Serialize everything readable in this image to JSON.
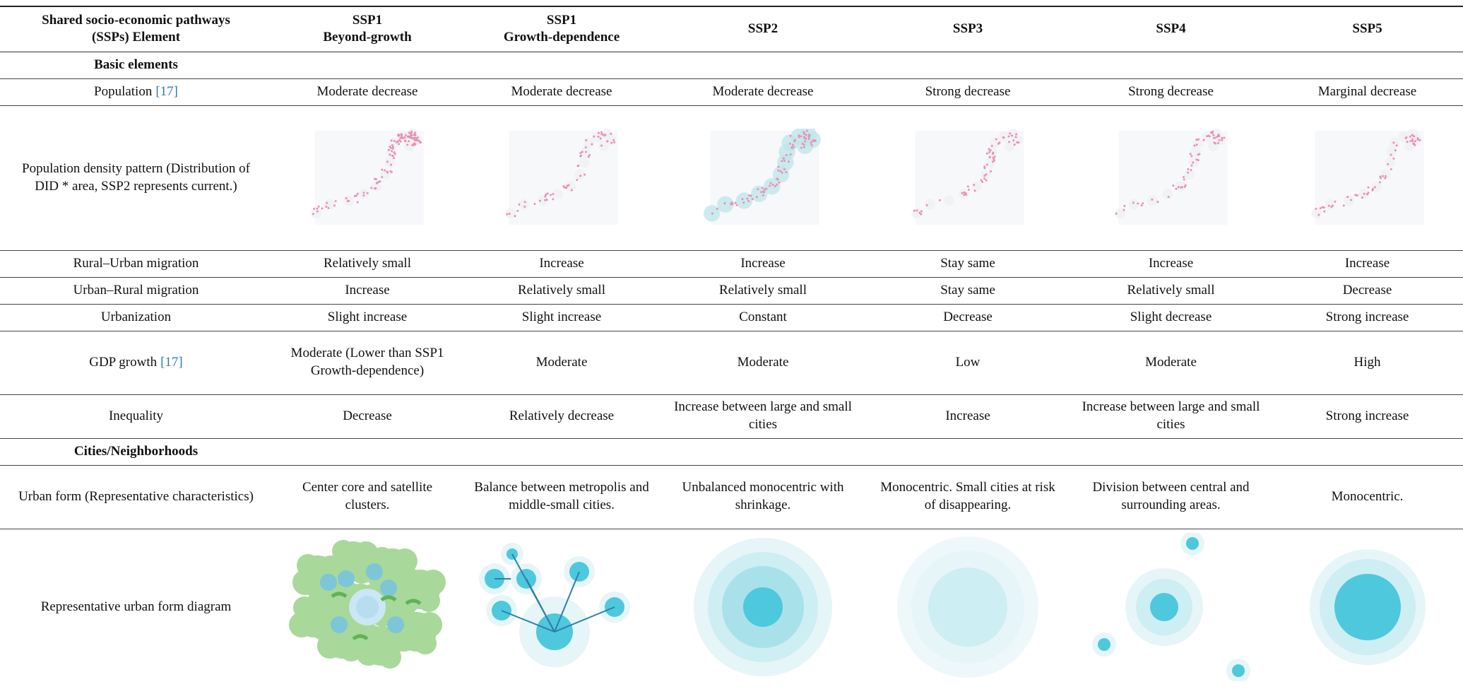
{
  "table": {
    "header": [
      [
        "Shared socio-economic pathways",
        "(SSPs) Element"
      ],
      [
        "SSP1",
        "Beyond-growth"
      ],
      [
        "SSP1",
        "Growth-dependence"
      ],
      [
        "SSP2"
      ],
      [
        "SSP3"
      ],
      [
        "SSP4"
      ],
      [
        "SSP5"
      ]
    ],
    "rows": [
      {
        "section": "Basic elements"
      },
      {
        "label": "Population",
        "ref": "[17]",
        "cells": [
          "Moderate decrease",
          "Moderate decrease",
          "Moderate decrease",
          "Strong decrease",
          "Strong decrease",
          "Marginal decrease"
        ]
      },
      {
        "label": "Population density pattern (Distribution of DID * area, SSP2 represents current.)"
      },
      {
        "label": "Rural–Urban migration",
        "cells": [
          "Relatively small",
          "Increase",
          "Increase",
          "Stay same",
          "Increase",
          "Increase"
        ]
      },
      {
        "label": "Urban–Rural migration",
        "cells": [
          "Increase",
          "Relatively small",
          "Relatively small",
          "Stay same",
          "Relatively small",
          "Decrease"
        ]
      },
      {
        "label": "Urbanization",
        "cells": [
          "Slight increase",
          "Slight increase",
          "Constant",
          "Decrease",
          "Slight decrease",
          "Strong increase"
        ]
      },
      {
        "label": "GDP growth",
        "ref": "[17]",
        "cells": [
          "Moderate (Lower than SSP1 Growth-dependence)",
          "Moderate",
          "Moderate",
          "Low",
          "Moderate",
          "High"
        ]
      },
      {
        "label": "Inequality",
        "cells": [
          "Decrease",
          "Relatively decrease",
          "Increase between large and small cities",
          "Increase",
          "Increase between large and small cities",
          "Strong increase"
        ]
      },
      {
        "section": "Cities/Neighborhoods"
      },
      {
        "label": "Urban form (Representative characteristics)",
        "cells": [
          "Center core and satellite clusters.",
          "Balance between metropolis and middle-small cities.",
          "Unbalanced monocentric with shrinkage.",
          "Monocentric. Small cities at risk of disappearing.",
          "Division between central and surrounding areas.",
          "Monocentric."
        ]
      },
      {
        "label": "Representative urban form diagram"
      }
    ]
  }
}
